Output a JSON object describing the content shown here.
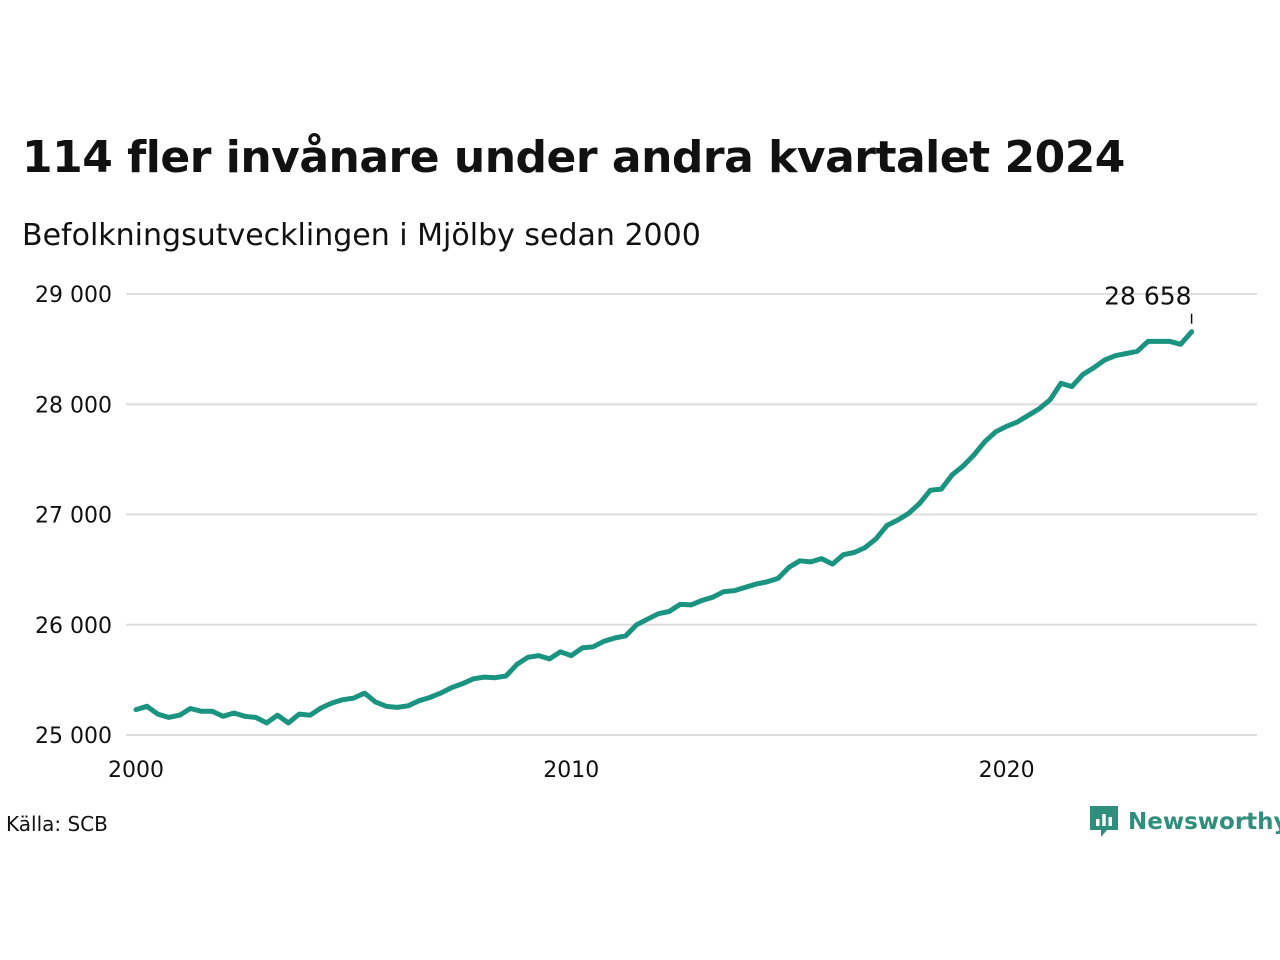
{
  "title": "114 fler invånare under andra kvartalet 2024",
  "subtitle": "Befolkningsutvecklingen i Mjölby sedan 2000",
  "source": "Källa: SCB",
  "brand": "Newsworthy",
  "colors": {
    "line": "#1a9480",
    "grid": "#dddddd",
    "brand": "#2f8f7c"
  },
  "chart_data": {
    "type": "line",
    "title": "114 fler invånare under andra kvartalet 2024",
    "subtitle": "Befolkningsutvecklingen i Mjölby sedan 2000",
    "xlabel": "",
    "ylabel": "",
    "x_ticks": [
      2000,
      2010,
      2020
    ],
    "y_ticks": [
      {
        "value": 25000,
        "label": "25 000"
      },
      {
        "value": 26000,
        "label": "26 000"
      },
      {
        "value": 27000,
        "label": "27 000"
      },
      {
        "value": 28000,
        "label": "28 000"
      },
      {
        "value": 29000,
        "label": "29 000"
      }
    ],
    "xlim": [
      2000,
      2025.5
    ],
    "ylim": [
      24900,
      29100
    ],
    "grid": true,
    "annotation": {
      "x": 2024.25,
      "value": 28658,
      "label": "28 658"
    },
    "series": [
      {
        "x": [
          2000.0,
          2000.25,
          2000.5,
          2000.75,
          2001.0,
          2001.25,
          2001.5,
          2001.75,
          2002.0,
          2002.25,
          2002.5,
          2002.75,
          2003.0,
          2003.25,
          2003.5,
          2003.75,
          2004.0,
          2004.25,
          2004.5,
          2004.75,
          2005.0,
          2005.25,
          2005.5,
          2005.75,
          2006.0,
          2006.25,
          2006.5,
          2006.75,
          2007.0,
          2007.25,
          2007.5,
          2007.75,
          2008.0,
          2008.25,
          2008.5,
          2008.75,
          2009.0,
          2009.25,
          2009.5,
          2009.75,
          2010.0,
          2010.25,
          2010.5,
          2010.75,
          2011.0,
          2011.25,
          2011.5,
          2011.75,
          2012.0,
          2012.25,
          2012.5,
          2012.75,
          2013.0,
          2013.25,
          2013.5,
          2013.75,
          2014.0,
          2014.25,
          2014.5,
          2014.75,
          2015.0,
          2015.25,
          2015.5,
          2015.75,
          2016.0,
          2016.25,
          2016.5,
          2016.75,
          2017.0,
          2017.25,
          2017.5,
          2017.75,
          2018.0,
          2018.25,
          2018.5,
          2018.75,
          2019.0,
          2019.25,
          2019.5,
          2019.75,
          2020.0,
          2020.25,
          2020.5,
          2020.75,
          2021.0,
          2021.25,
          2021.5,
          2021.75,
          2022.0,
          2022.25,
          2022.5,
          2022.75,
          2023.0,
          2023.25,
          2023.5,
          2023.75,
          2024.0,
          2024.25
        ],
        "values": [
          25230,
          25260,
          25190,
          25160,
          25180,
          25240,
          25215,
          25215,
          25170,
          25200,
          25170,
          25160,
          25110,
          25180,
          25110,
          25190,
          25180,
          25245,
          25290,
          25320,
          25335,
          25380,
          25300,
          25260,
          25250,
          25265,
          25310,
          25340,
          25380,
          25430,
          25465,
          25510,
          25525,
          25520,
          25535,
          25640,
          25705,
          25720,
          25690,
          25755,
          25720,
          25790,
          25800,
          25850,
          25880,
          25900,
          26000,
          26050,
          26100,
          26120,
          26185,
          26180,
          26220,
          26250,
          26300,
          26310,
          26340,
          26370,
          26390,
          26420,
          26520,
          26580,
          26570,
          26600,
          26550,
          26635,
          26655,
          26700,
          26780,
          26900,
          26950,
          27010,
          27100,
          27220,
          27230,
          27360,
          27440,
          27540,
          27660,
          27750,
          27800,
          27840,
          27900,
          27960,
          28040,
          28190,
          28160,
          28270,
          28330,
          28400,
          28440,
          28460,
          28480,
          28570,
          28570,
          28570,
          28544,
          28658
        ]
      }
    ]
  }
}
